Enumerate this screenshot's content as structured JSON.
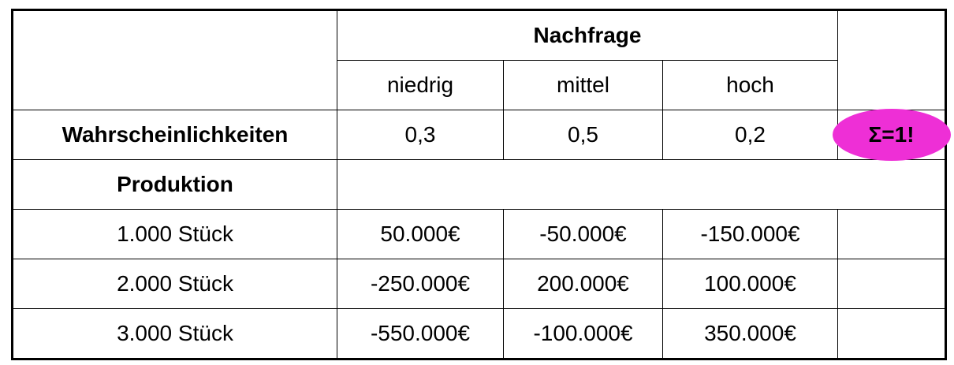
{
  "table": {
    "header": {
      "group_label": "Nachfrage",
      "columns": [
        "niedrig",
        "mittel",
        "hoch"
      ]
    },
    "probabilities": {
      "label": "Wahrscheinlichkeiten",
      "values": [
        "0,3",
        "0,5",
        "0,2"
      ],
      "sum_note": "Σ=1!",
      "sum_note_color": "#ee2fd6"
    },
    "production_label": "Produktion",
    "rows": [
      {
        "label": "1.000 Stück",
        "values": [
          "50.000€",
          "-50.000€",
          "-150.000€"
        ]
      },
      {
        "label": "2.000 Stück",
        "values": [
          "-250.000€",
          "200.000€",
          "100.000€"
        ]
      },
      {
        "label": "3.000 Stück",
        "values": [
          "-550.000€",
          "-100.000€",
          "350.000€"
        ]
      }
    ]
  }
}
